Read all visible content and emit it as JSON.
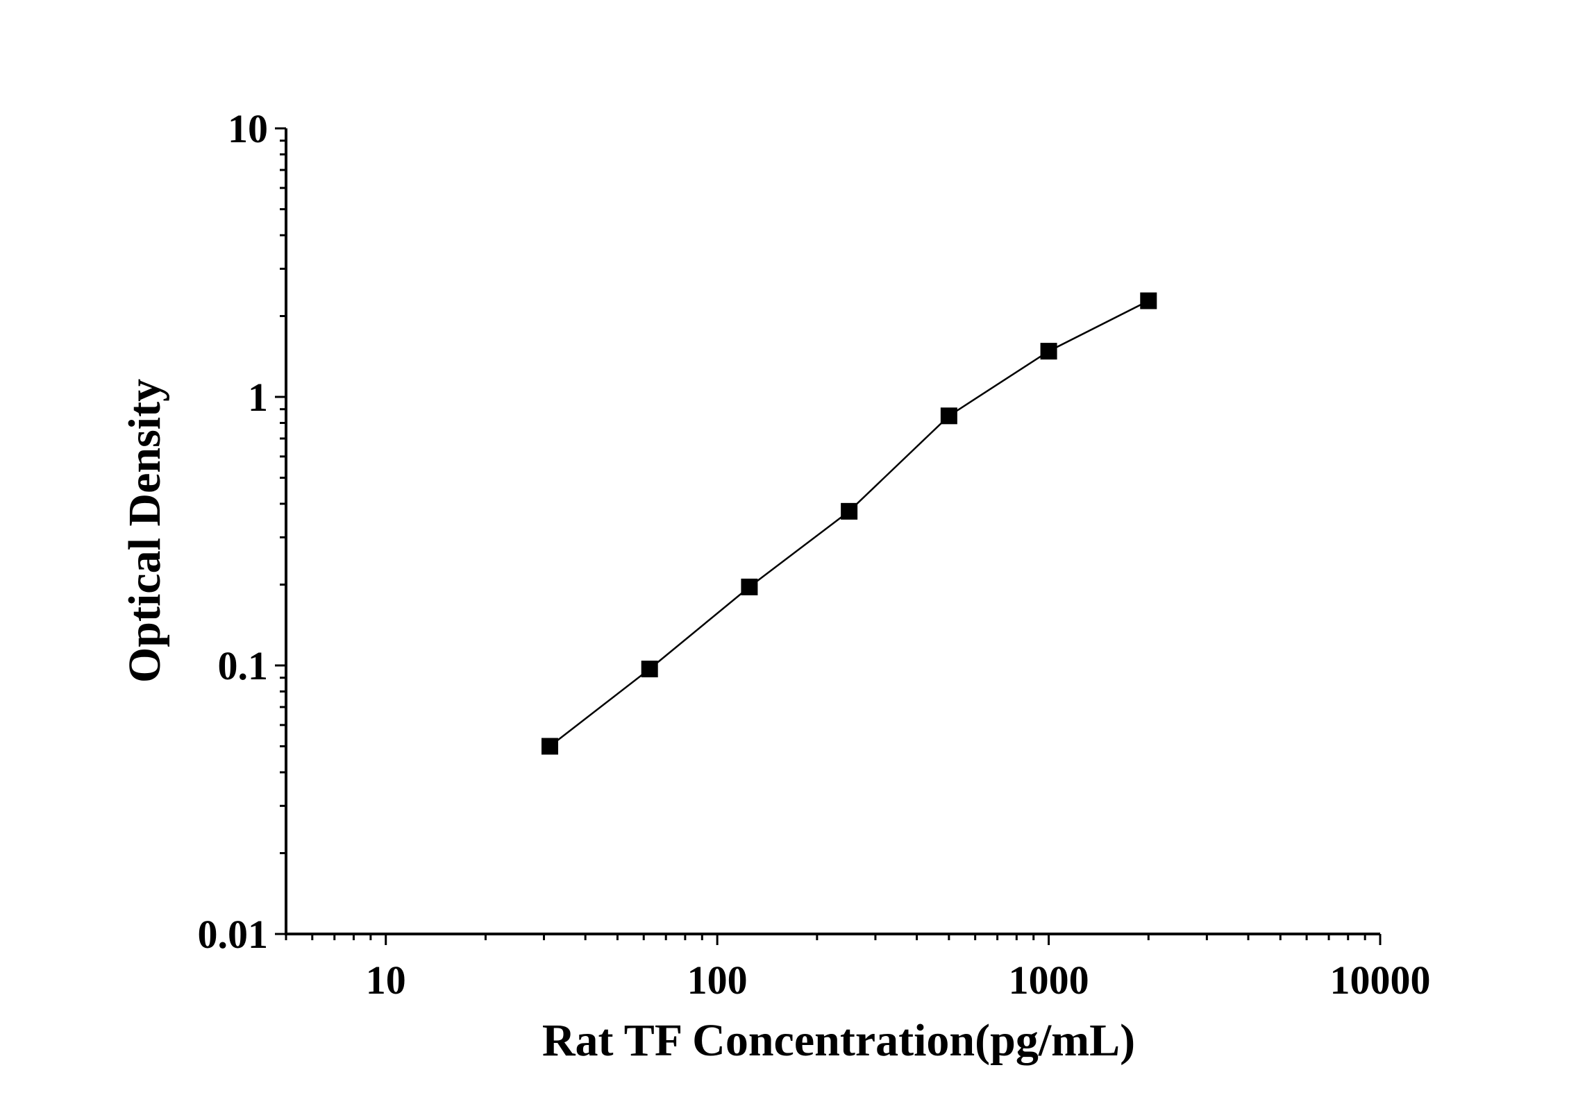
{
  "chart_data": {
    "type": "line",
    "xlabel": "Rat TF Concentration(pg/mL)",
    "ylabel": "Optical Density",
    "xscale": "log",
    "yscale": "log",
    "xlim": [
      5,
      10000
    ],
    "ylim": [
      0.01,
      10
    ],
    "xticks": [
      {
        "value": 10,
        "label": "10"
      },
      {
        "value": 100,
        "label": "100"
      },
      {
        "value": 1000,
        "label": "1000"
      },
      {
        "value": 10000,
        "label": "10000"
      }
    ],
    "yticks": [
      {
        "value": 0.01,
        "label": "0.01"
      },
      {
        "value": 0.1,
        "label": "0.1"
      },
      {
        "value": 1,
        "label": "1"
      },
      {
        "value": 10,
        "label": "10"
      }
    ],
    "grid": false,
    "legend": false,
    "marker": "square",
    "series": [
      {
        "x": [
          31.25,
          62.5,
          125,
          250,
          500,
          1000,
          2000
        ],
        "y": [
          0.05,
          0.097,
          0.196,
          0.375,
          0.85,
          1.48,
          2.28
        ]
      }
    ],
    "colors": {
      "line": "#000000",
      "marker": "#000000",
      "axis": "#000000"
    }
  }
}
